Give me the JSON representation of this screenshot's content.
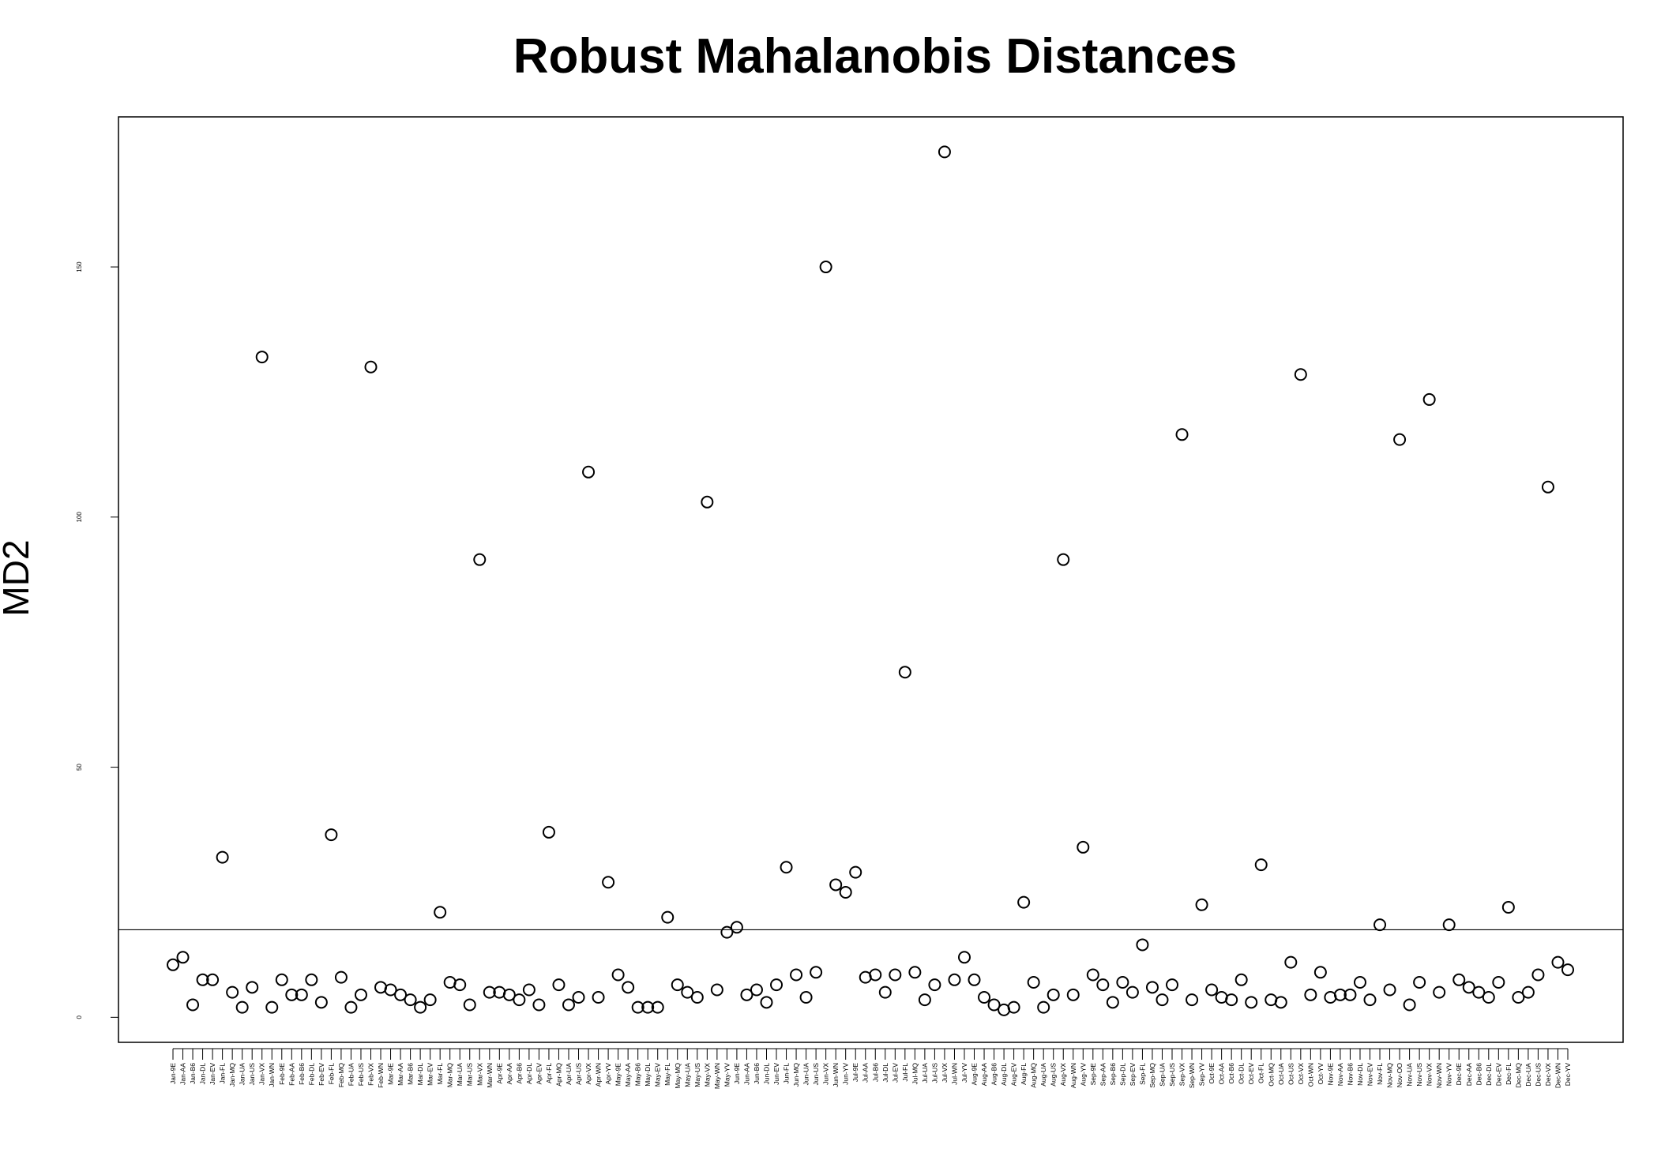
{
  "chart_data": {
    "type": "scatter",
    "title": "Robust Mahalanobis Distances",
    "xlabel": "",
    "ylabel": "MD2",
    "ylim": [
      -5,
      180
    ],
    "yticks": [
      0,
      50,
      100,
      150
    ],
    "cutoff": 17.5,
    "marker": "open-circle",
    "grid": false,
    "legend": "none",
    "categories": [
      "Jan-9E",
      "Jan-AA",
      "Jan-B6",
      "Jan-DL",
      "Jan-EV",
      "Jan-FL",
      "Jan-MQ",
      "Jan-UA",
      "Jan-US",
      "Jan-VX",
      "Jan-WN",
      "Feb-9E",
      "Feb-AA",
      "Feb-B6",
      "Feb-DL",
      "Feb-EV",
      "Feb-FL",
      "Feb-MQ",
      "Feb-UA",
      "Feb-US",
      "Feb-VX",
      "Feb-WN",
      "Mar-9E",
      "Mar-AA",
      "Mar-B6",
      "Mar-DL",
      "Mar-EV",
      "Mar-FL",
      "Mar-MQ",
      "Mar-UA",
      "Mar-US",
      "Mar-VX",
      "Mar-WN",
      "Apr-9E",
      "Apr-AA",
      "Apr-B6",
      "Apr-DL",
      "Apr-EV",
      "Apr-FL",
      "Apr-MQ",
      "Apr-UA",
      "Apr-US",
      "Apr-VX",
      "Apr-WN",
      "Apr-YV",
      "May-9E",
      "May-AA",
      "May-B6",
      "May-DL",
      "May-EV",
      "May-FL",
      "May-MQ",
      "May-UA",
      "May-US",
      "May-VX",
      "May-WN",
      "May-YV",
      "Jun-9E",
      "Jun-AA",
      "Jun-B6",
      "Jun-DL",
      "Jun-EV",
      "Jun-FL",
      "Jun-MQ",
      "Jun-UA",
      "Jun-US",
      "Jun-VX",
      "Jun-WN",
      "Jun-YV",
      "Jul-9E",
      "Jul-AA",
      "Jul-B6",
      "Jul-DL",
      "Jul-EV",
      "Jul-FL",
      "Jul-MQ",
      "Jul-UA",
      "Jul-US",
      "Jul-VX",
      "Jul-WN",
      "Jul-YV",
      "Aug-9E",
      "Aug-AA",
      "Aug-B6",
      "Aug-DL",
      "Aug-EV",
      "Aug-FL",
      "Aug-MQ",
      "Aug-UA",
      "Aug-US",
      "Aug-VX",
      "Aug-WN",
      "Aug-YV",
      "Sep-9E",
      "Sep-AA",
      "Sep-B6",
      "Sep-DL",
      "Sep-EV",
      "Sep-FL",
      "Sep-MQ",
      "Sep-UA",
      "Sep-US",
      "Sep-VX",
      "Sep-WN",
      "Sep-YV",
      "Oct-9E",
      "Oct-AA",
      "Oct-B6",
      "Oct-DL",
      "Oct-EV",
      "Oct-FL",
      "Oct-MQ",
      "Oct-UA",
      "Oct-US",
      "Oct-VX",
      "Oct-WN",
      "Oct-YV",
      "Nov-9E",
      "Nov-AA",
      "Nov-B6",
      "Nov-DL",
      "Nov-EV",
      "Nov-FL",
      "Nov-MQ",
      "Nov-OO",
      "Nov-UA",
      "Nov-US",
      "Nov-VX",
      "Nov-WN",
      "Nov-YV",
      "Dec-9E",
      "Dec-AA",
      "Dec-B6",
      "Dec-DL",
      "Dec-EV",
      "Dec-FL",
      "Dec-MQ",
      "Dec-UA",
      "Dec-US",
      "Dec-VX",
      "Dec-WN",
      "Dec-YV"
    ],
    "values": [
      10.5,
      12,
      2.5,
      7.5,
      7.5,
      32,
      5,
      2,
      6,
      132,
      2,
      7.5,
      4.5,
      4.5,
      7.5,
      3,
      36.5,
      8,
      2,
      4.5,
      130,
      6,
      5.5,
      4.5,
      3.5,
      2,
      3.5,
      21,
      7,
      6.5,
      2.5,
      91.5,
      5,
      5,
      4.5,
      3.5,
      5.5,
      2.5,
      37,
      6.5,
      2.5,
      4,
      109,
      4,
      27,
      8.5,
      6,
      2,
      2,
      2,
      20,
      6.5,
      5,
      4,
      103,
      5.5,
      17,
      18,
      4.5,
      5.5,
      3,
      6.5,
      30,
      8.5,
      4,
      9,
      150,
      26.5,
      25,
      29,
      8,
      8.5,
      5,
      8.5,
      69,
      9,
      3.5,
      6.5,
      173,
      7.5,
      12,
      7.5,
      4,
      2.5,
      1.5,
      2,
      23,
      7,
      2,
      4.5,
      91.5,
      4.5,
      34,
      8.5,
      6.5,
      3,
      7,
      5,
      14.5,
      6,
      3.5,
      6.5,
      116.5,
      3.5,
      22.5,
      5.5,
      4,
      3.5,
      7.5,
      3,
      30.5,
      3.5,
      3,
      11,
      128.5,
      4.5,
      9,
      4,
      4.5,
      4.5,
      7,
      3.5,
      18.5,
      5.5,
      115.5,
      2.5,
      7,
      123.5,
      5,
      18.5,
      7.5,
      6,
      5,
      4,
      7,
      22,
      4,
      5,
      8.5,
      106,
      11,
      9.5
    ]
  }
}
